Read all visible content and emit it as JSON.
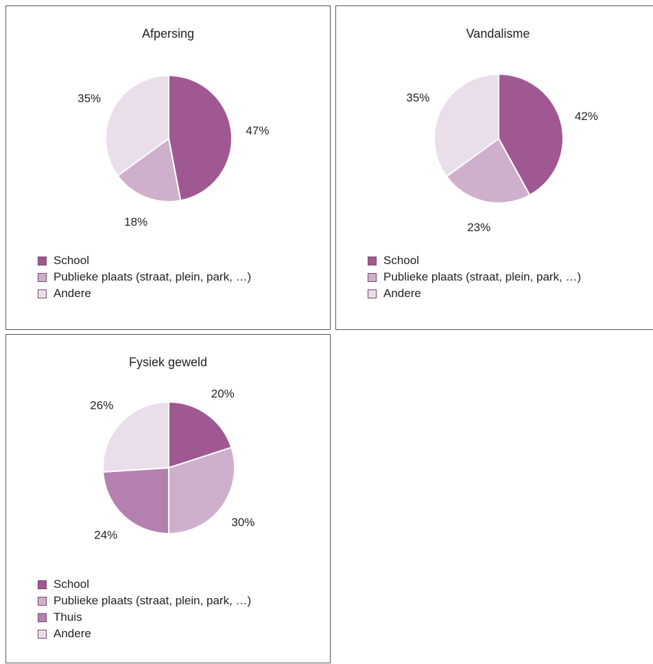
{
  "chart_data": [
    {
      "type": "pie",
      "title": "Afpersing",
      "categories": [
        "School",
        "Publieke plaats (straat, plein, park, …)",
        "Andere"
      ],
      "values": [
        47,
        18,
        35
      ],
      "data_labels": [
        "47%",
        "18%",
        "35%"
      ],
      "colors": [
        "#a05892",
        "#ceb0cd",
        "#eadeea"
      ],
      "legend": "bottom-left"
    },
    {
      "type": "pie",
      "title": "Vandalisme",
      "categories": [
        "School",
        "Publieke plaats (straat, plein, park, …)",
        "Andere"
      ],
      "values": [
        42,
        23,
        35
      ],
      "data_labels": [
        "42%",
        "23%",
        "35%"
      ],
      "colors": [
        "#a05892",
        "#ceb0cd",
        "#eadeea"
      ],
      "legend": "bottom-left"
    },
    {
      "type": "pie",
      "title": "Fysiek geweld",
      "categories": [
        "School",
        "Publieke plaats (straat, plein, park, …)",
        "Thuis",
        "Andere"
      ],
      "values": [
        20,
        30,
        24,
        26
      ],
      "data_labels": [
        "20%",
        "30%",
        "24%",
        "26%"
      ],
      "colors": [
        "#a05892",
        "#ceb0cd",
        "#b580b0",
        "#eadeea"
      ],
      "legend": "bottom-left"
    }
  ]
}
